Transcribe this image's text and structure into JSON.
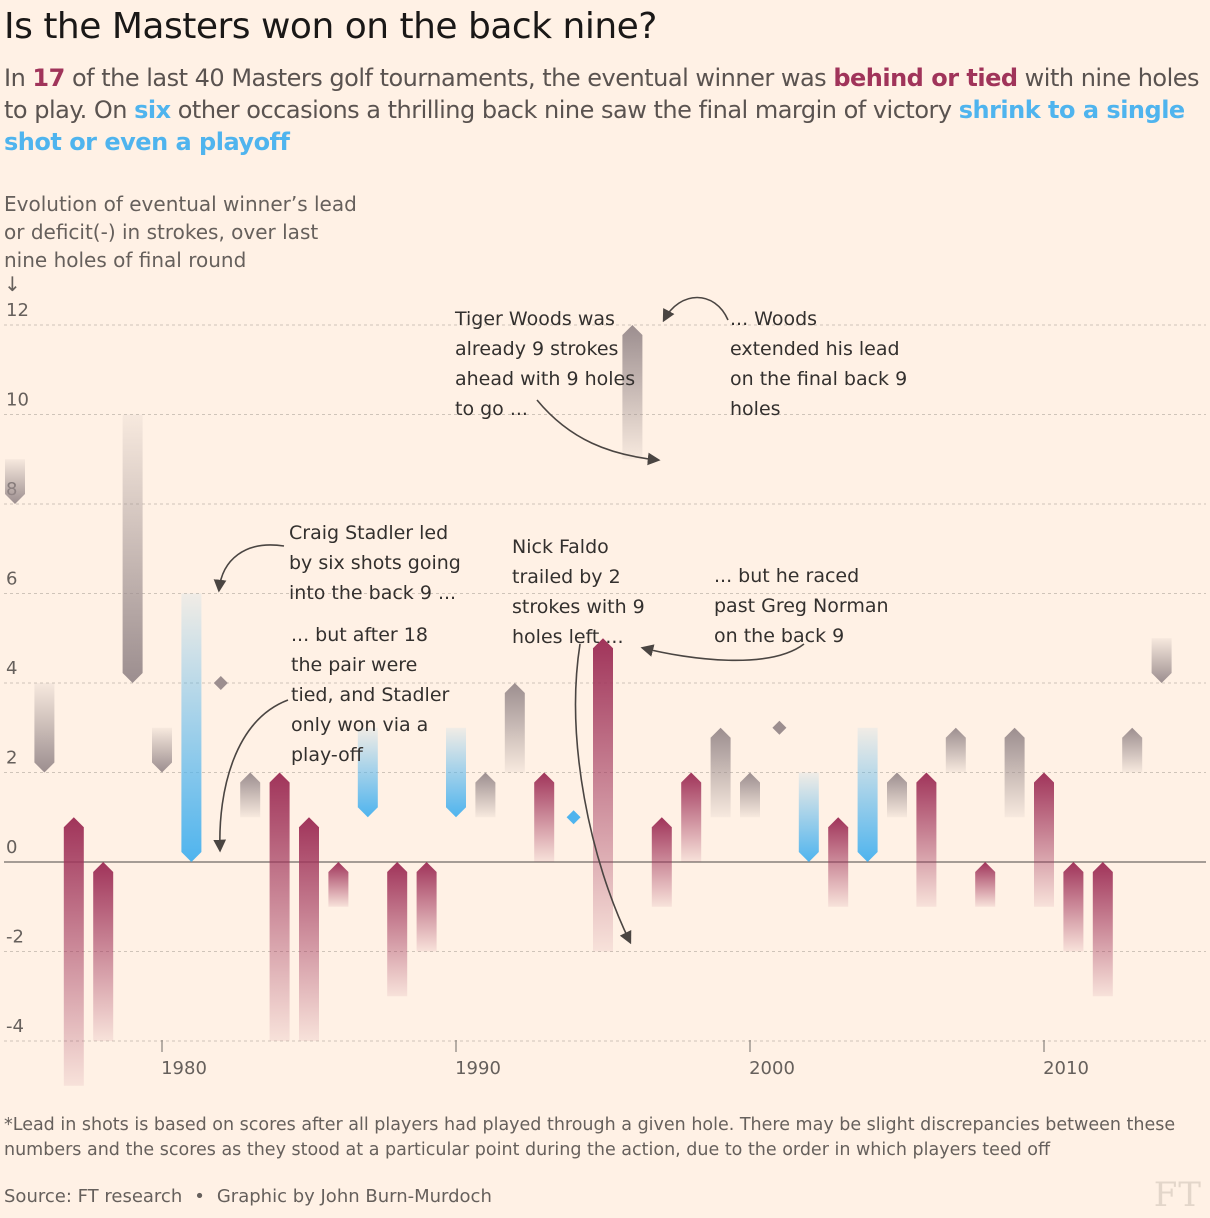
{
  "title": "Is the Masters won on the back nine?",
  "subtitle": {
    "p1": "In ",
    "n17": "17",
    "p2": " of the last 40 Masters golf tournaments, the eventual winner was ",
    "behind": "behind or tied",
    "p3": " with nine holes to play. On ",
    "six": "six",
    "p4": " other occasions a thrilling back nine saw the final margin of victory ",
    "shrink": "shrink to a single shot or even a playoff"
  },
  "yaxis_title": "Evolution of eventual winner’s lead or deficit(-) in strokes, over last nine holes of final round",
  "yaxis_arrow": "↓",
  "footnote": "*Lead in shots is based on scores after all players had played through a given hole. There may be slight discrepancies between these numbers and the scores as they stood at a particular point during the action, due to the order in which players teed off",
  "source": "Source: FT research",
  "credit": "Graphic by John Burn-Murdoch",
  "logo": "FT",
  "colors": {
    "behind": "#a0345a",
    "shrink": "#4fb4ee",
    "other": "#9c8e8f",
    "background": "#fff1e5"
  },
  "chart_data": {
    "type": "bar",
    "yticks": [
      "12",
      "10",
      "8",
      "6",
      "4",
      "2",
      "0",
      "-2",
      "-4"
    ],
    "ytick_values": [
      12,
      10,
      8,
      6,
      4,
      2,
      0,
      -2,
      -4
    ],
    "xticks": [
      "1980",
      "1990",
      "2000",
      "2010"
    ],
    "xtick_values": [
      1980,
      1990,
      2000,
      2010
    ],
    "xlim": [
      1975,
      2016
    ],
    "ylim": [
      -5,
      12.5
    ],
    "grid": true,
    "series": [
      {
        "year": 1975,
        "start": 9,
        "end": 8,
        "cat": "other"
      },
      {
        "year": 1976,
        "start": 4,
        "end": 2,
        "cat": "other"
      },
      {
        "year": 1977,
        "start": -5,
        "end": 1,
        "cat": "behind"
      },
      {
        "year": 1978,
        "start": -4,
        "end": 0,
        "cat": "behind"
      },
      {
        "year": 1979,
        "start": 10,
        "end": 4,
        "cat": "other"
      },
      {
        "year": 1980,
        "start": 3,
        "end": 2,
        "cat": "other"
      },
      {
        "year": 1981,
        "start": 6,
        "end": 0,
        "cat": "shrink"
      },
      {
        "year": 1982,
        "start": 4,
        "end": 4,
        "cat": "other"
      },
      {
        "year": 1983,
        "start": 1,
        "end": 2,
        "cat": "other"
      },
      {
        "year": 1984,
        "start": -4,
        "end": 2,
        "cat": "behind"
      },
      {
        "year": 1985,
        "start": -4,
        "end": 1,
        "cat": "behind"
      },
      {
        "year": 1986,
        "start": -1,
        "end": 0,
        "cat": "behind"
      },
      {
        "year": 1987,
        "start": 3,
        "end": 1,
        "cat": "shrink"
      },
      {
        "year": 1988,
        "start": -3,
        "end": 0,
        "cat": "behind"
      },
      {
        "year": 1989,
        "start": -2,
        "end": 0,
        "cat": "behind"
      },
      {
        "year": 1990,
        "start": 3,
        "end": 1,
        "cat": "shrink"
      },
      {
        "year": 1991,
        "start": 1,
        "end": 2,
        "cat": "other"
      },
      {
        "year": 1992,
        "start": 2,
        "end": 4,
        "cat": "other"
      },
      {
        "year": 1993,
        "start": 0,
        "end": 2,
        "cat": "behind"
      },
      {
        "year": 1994,
        "start": 1,
        "end": 1,
        "cat": "shrink"
      },
      {
        "year": 1995,
        "start": -2,
        "end": 5,
        "cat": "behind"
      },
      {
        "year": 1996,
        "start": 9,
        "end": 12,
        "cat": "other"
      },
      {
        "year": 1997,
        "start": -1,
        "end": 1,
        "cat": "behind"
      },
      {
        "year": 1998,
        "start": 0,
        "end": 2,
        "cat": "behind"
      },
      {
        "year": 1999,
        "start": 1,
        "end": 3,
        "cat": "other"
      },
      {
        "year": 2000,
        "start": 1,
        "end": 2,
        "cat": "other"
      },
      {
        "year": 2001,
        "start": 3,
        "end": 3,
        "cat": "other"
      },
      {
        "year": 2002,
        "start": 2,
        "end": 0,
        "cat": "shrink"
      },
      {
        "year": 2003,
        "start": -1,
        "end": 1,
        "cat": "behind"
      },
      {
        "year": 2004,
        "start": 3,
        "end": 0,
        "cat": "shrink"
      },
      {
        "year": 2005,
        "start": 1,
        "end": 2,
        "cat": "other"
      },
      {
        "year": 2006,
        "start": -1,
        "end": 2,
        "cat": "behind"
      },
      {
        "year": 2007,
        "start": 2,
        "end": 3,
        "cat": "other"
      },
      {
        "year": 2008,
        "start": -1,
        "end": 0,
        "cat": "behind"
      },
      {
        "year": 2009,
        "start": 1,
        "end": 3,
        "cat": "other"
      },
      {
        "year": 2010,
        "start": -1,
        "end": 2,
        "cat": "behind"
      },
      {
        "year": 2011,
        "start": -2,
        "end": 0,
        "cat": "behind"
      },
      {
        "year": 2012,
        "start": -3,
        "end": 0,
        "cat": "behind"
      },
      {
        "year": 2013,
        "start": 2,
        "end": 3,
        "cat": "other"
      },
      {
        "year": 2014,
        "start": 5,
        "end": 4,
        "cat": "other"
      }
    ],
    "annotations": {
      "tiger1": [
        "Tiger Woods was",
        "already 9 strokes",
        "ahead with 9 holes",
        "to go ..."
      ],
      "tiger2": [
        "... Woods",
        "extended his lead",
        "on the final back 9",
        "holes"
      ],
      "stadler1": [
        "Craig Stadler led",
        "by six shots going",
        "into the back 9 ..."
      ],
      "stadler2": [
        "... but after 18",
        "the pair were",
        "tied, and Stadler",
        "only won via a",
        "play-off"
      ],
      "faldo1": [
        "Nick Faldo",
        "trailed by 2",
        "strokes with 9",
        "holes left ..."
      ],
      "faldo2": [
        "... but he raced",
        "past Greg Norman",
        "on the back 9"
      ]
    }
  }
}
